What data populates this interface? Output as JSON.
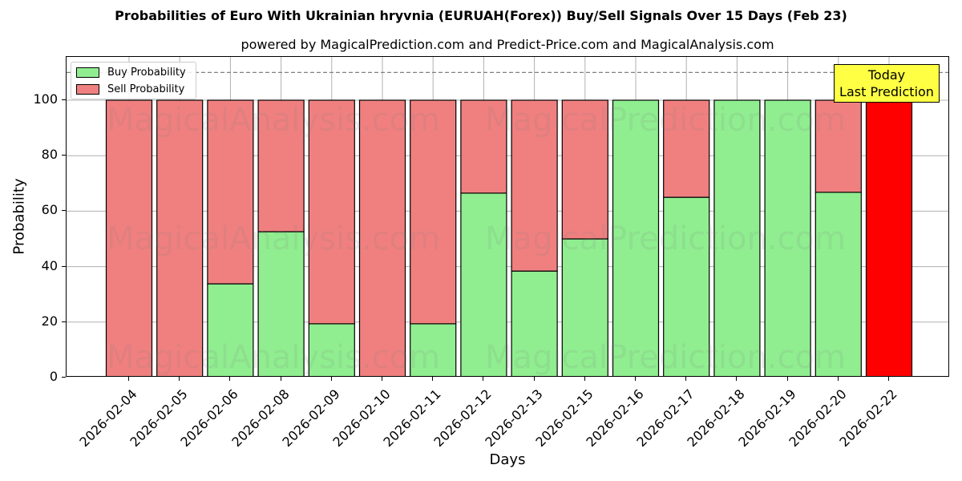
{
  "chart_data": {
    "type": "bar",
    "stacked": true,
    "title": "Probabilities of Euro With Ukrainian hryvnia (EURUAH(Forex)) Buy/Sell Signals Over 15 Days (Feb 23)",
    "subtitle": "powered by MagicalPrediction.com and Predict-Price.com and MagicalAnalysis.com",
    "xlabel": "Days",
    "ylabel": "Probability",
    "ylim": [
      0,
      115
    ],
    "yticks": [
      0,
      20,
      40,
      60,
      80,
      100
    ],
    "grid": true,
    "reference_line": 110,
    "legend_position": "upper left",
    "categories": [
      "2026-02-04",
      "2026-02-05",
      "2026-02-06",
      "2026-02-08",
      "2026-02-09",
      "2026-02-10",
      "2026-02-11",
      "2026-02-12",
      "2026-02-13",
      "2026-02-15",
      "2026-02-16",
      "2026-02-17",
      "2026-02-18",
      "2026-02-19",
      "2026-02-20",
      "2026-02-22"
    ],
    "series": [
      {
        "name": "Buy Probability",
        "color": "#90ee90",
        "values": [
          0,
          0,
          33.8,
          52.6,
          19.4,
          0,
          19.4,
          66.5,
          38.4,
          50.0,
          100,
          65.0,
          100,
          100,
          66.8,
          0
        ]
      },
      {
        "name": "Sell Probability",
        "color": "#f08080",
        "values": [
          100,
          100,
          66.2,
          47.4,
          80.6,
          100,
          80.6,
          33.5,
          61.6,
          50.0,
          0,
          35.0,
          0,
          0,
          33.2,
          100
        ]
      }
    ],
    "highlight": {
      "category": "2026-02-22",
      "color": "#ff0000",
      "value": 100
    },
    "annotation": {
      "line1": "Today",
      "line2": "Last Prediction",
      "color": "#ffff44"
    },
    "watermarks": [
      "MagicalAnalysis.com",
      "MagicalPrediction.com"
    ]
  },
  "labels": {
    "title": "Probabilities of Euro With Ukrainian hryvnia (EURUAH(Forex)) Buy/Sell Signals Over 15 Days (Feb 23)",
    "subtitle": "powered by MagicalPrediction.com and Predict-Price.com and MagicalAnalysis.com",
    "xlabel": "Days",
    "ylabel": "Probability",
    "legend_buy": "Buy Probability",
    "legend_sell": "Sell Probability",
    "today_line1": "Today",
    "today_line2": "Last Prediction"
  }
}
